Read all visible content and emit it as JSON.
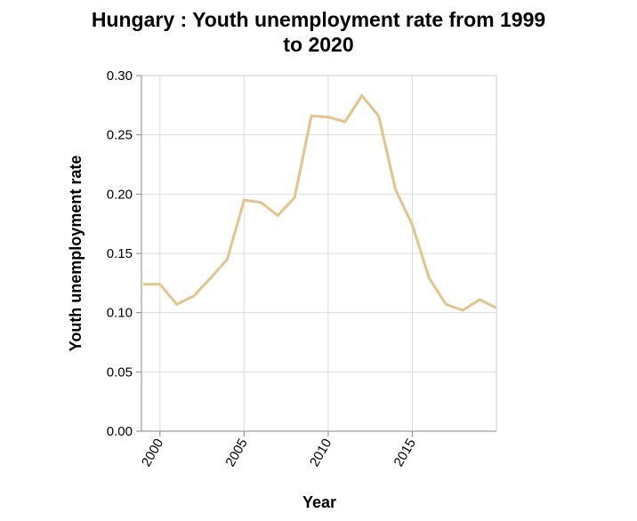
{
  "chart_data": {
    "type": "line",
    "title": "Hungary : Youth unemployment rate from 1999\nto 2020",
    "xlabel": "Year",
    "ylabel": "Youth unemployment rate",
    "xlim": [
      1998.9,
      2020
    ],
    "ylim": [
      0,
      0.3
    ],
    "x_ticks": [
      2000,
      2005,
      2010,
      2015
    ],
    "y_ticks": [
      "0.00",
      "0.05",
      "0.10",
      "0.15",
      "0.20",
      "0.25",
      "0.30"
    ],
    "grid": true,
    "line_color": "#e3c48a",
    "series": [
      {
        "x": [
          1999,
          2000,
          2001,
          2002,
          2003,
          2004,
          2005,
          2006,
          2007,
          2008,
          2009,
          2010,
          2011,
          2012,
          2013,
          2014,
          2015,
          2016,
          2017,
          2018,
          2019,
          2020
        ],
        "values": [
          0.124,
          0.124,
          0.107,
          0.114,
          0.129,
          0.145,
          0.195,
          0.193,
          0.182,
          0.197,
          0.266,
          0.265,
          0.261,
          0.283,
          0.266,
          0.204,
          0.174,
          0.129,
          0.107,
          0.102,
          0.111,
          0.104
        ]
      }
    ]
  }
}
